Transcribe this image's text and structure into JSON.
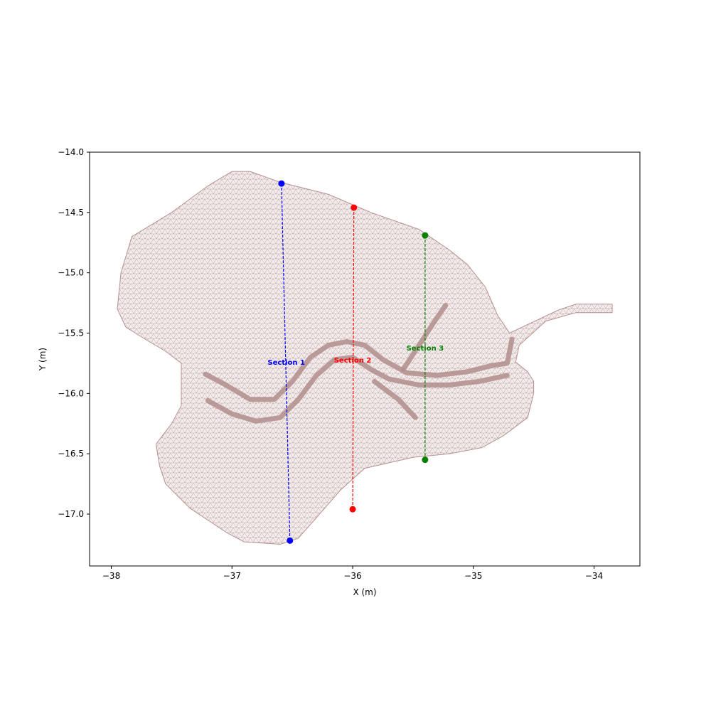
{
  "chart_data": {
    "type": "scatter",
    "title": "",
    "xlabel": "X (m)",
    "ylabel": "Y (m)",
    "xlim": [
      -38.18,
      -33.62
    ],
    "ylim": [
      -17.43,
      -14.0
    ],
    "xticks": [
      -38,
      -37,
      -36,
      -35,
      -34
    ],
    "yticks": [
      -14.0,
      -14.5,
      -15.0,
      -15.5,
      -16.0,
      -16.5,
      -17.0
    ],
    "xtick_labels": [
      "−38",
      "−37",
      "−36",
      "−35",
      "−34"
    ],
    "ytick_labels": [
      "−14.0",
      "−14.5",
      "−15.0",
      "−15.5",
      "−16.0",
      "−16.5",
      "−17.0"
    ],
    "grid": false,
    "mesh": {
      "color": "#b5918f",
      "fill": "#f1e8e8",
      "boundary": [
        [
          -37.0,
          -14.16
        ],
        [
          -36.85,
          -14.16
        ],
        [
          -36.6,
          -14.25
        ],
        [
          -36.2,
          -14.35
        ],
        [
          -35.85,
          -14.5
        ],
        [
          -35.45,
          -14.64
        ],
        [
          -35.2,
          -14.81
        ],
        [
          -35.05,
          -14.93
        ],
        [
          -34.9,
          -15.12
        ],
        [
          -34.8,
          -15.35
        ],
        [
          -34.7,
          -15.5
        ],
        [
          -34.3,
          -15.31
        ],
        [
          -34.15,
          -15.26
        ],
        [
          -33.85,
          -15.26
        ],
        [
          -33.85,
          -15.33
        ],
        [
          -34.15,
          -15.33
        ],
        [
          -34.4,
          -15.4
        ],
        [
          -34.62,
          -15.6
        ],
        [
          -34.65,
          -15.74
        ],
        [
          -34.55,
          -15.82
        ],
        [
          -34.5,
          -15.9
        ],
        [
          -34.5,
          -16.0
        ],
        [
          -34.55,
          -16.2
        ],
        [
          -34.75,
          -16.35
        ],
        [
          -34.93,
          -16.45
        ],
        [
          -35.2,
          -16.5
        ],
        [
          -35.5,
          -16.53
        ],
        [
          -35.9,
          -16.62
        ],
        [
          -36.1,
          -16.8
        ],
        [
          -36.3,
          -17.03
        ],
        [
          -36.45,
          -17.2
        ],
        [
          -36.6,
          -17.25
        ],
        [
          -36.9,
          -17.23
        ],
        [
          -37.05,
          -17.15
        ],
        [
          -37.35,
          -16.95
        ],
        [
          -37.55,
          -16.75
        ],
        [
          -37.6,
          -16.6
        ],
        [
          -37.63,
          -16.42
        ],
        [
          -37.5,
          -16.25
        ],
        [
          -37.42,
          -16.1
        ],
        [
          -37.42,
          -15.75
        ],
        [
          -37.55,
          -15.65
        ],
        [
          -37.72,
          -15.55
        ],
        [
          -37.88,
          -15.45
        ],
        [
          -37.95,
          -15.3
        ],
        [
          -37.92,
          -15.0
        ],
        [
          -37.83,
          -14.7
        ],
        [
          -37.5,
          -14.5
        ],
        [
          -37.2,
          -14.28
        ]
      ],
      "channels": [
        [
          [
            -37.22,
            -15.84
          ],
          [
            -37.05,
            -15.93
          ],
          [
            -36.85,
            -16.05
          ],
          [
            -36.65,
            -16.05
          ],
          [
            -36.5,
            -15.9
          ],
          [
            -36.35,
            -15.7
          ],
          [
            -36.2,
            -15.6
          ],
          [
            -36.05,
            -15.57
          ],
          [
            -35.9,
            -15.6
          ],
          [
            -35.75,
            -15.72
          ],
          [
            -35.55,
            -15.83
          ],
          [
            -35.3,
            -15.85
          ],
          [
            -35.05,
            -15.82
          ],
          [
            -34.85,
            -15.77
          ],
          [
            -34.72,
            -15.75
          ],
          [
            -34.68,
            -15.55
          ]
        ],
        [
          [
            -37.2,
            -16.06
          ],
          [
            -37.0,
            -16.17
          ],
          [
            -36.8,
            -16.23
          ],
          [
            -36.6,
            -16.2
          ],
          [
            -36.45,
            -16.05
          ],
          [
            -36.3,
            -15.85
          ],
          [
            -36.15,
            -15.72
          ],
          [
            -36.0,
            -15.7
          ],
          [
            -35.85,
            -15.8
          ],
          [
            -35.7,
            -15.88
          ],
          [
            -35.45,
            -15.93
          ],
          [
            -35.2,
            -15.93
          ],
          [
            -34.95,
            -15.9
          ],
          [
            -34.72,
            -15.85
          ]
        ],
        [
          [
            -35.58,
            -15.8
          ],
          [
            -35.45,
            -15.6
          ],
          [
            -35.32,
            -15.4
          ],
          [
            -35.23,
            -15.27
          ]
        ],
        [
          [
            -35.82,
            -15.9
          ],
          [
            -35.62,
            -16.05
          ],
          [
            -35.48,
            -16.2
          ]
        ]
      ]
    },
    "series": [
      {
        "name": "Section 1",
        "color": "#0000ff",
        "start": [
          -36.59,
          -14.26
        ],
        "end": [
          -36.52,
          -17.22
        ]
      },
      {
        "name": "Section 2",
        "color": "#ff0000",
        "start": [
          -35.99,
          -14.46
        ],
        "end": [
          -36.0,
          -16.96
        ]
      },
      {
        "name": "Section 3",
        "color": "#008000",
        "start": [
          -35.4,
          -14.69
        ],
        "end": [
          -35.4,
          -16.55
        ]
      }
    ],
    "annotations": [
      {
        "text": "Section 1",
        "color": "#0000ff",
        "x": -36.55,
        "y": -15.74
      },
      {
        "text": "Section 2",
        "color": "#ff0000",
        "x": -36.0,
        "y": -15.72
      },
      {
        "text": "Section 3",
        "color": "#008000",
        "x": -35.4,
        "y": -15.62
      }
    ]
  }
}
